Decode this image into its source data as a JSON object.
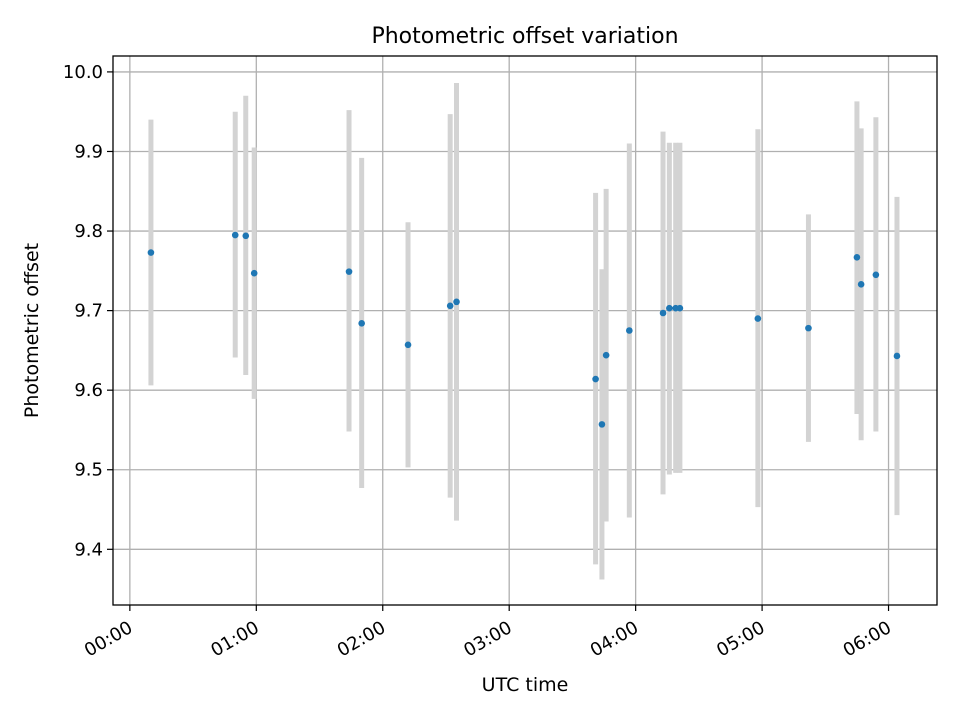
{
  "chart_data": {
    "type": "scatter",
    "title": "Photometric offset variation",
    "xlabel": "UTC time",
    "ylabel": "Photometric offset",
    "xlim": [
      "-00:08",
      "06:23"
    ],
    "ylim": [
      9.33,
      10.02
    ],
    "xticks": [
      "00:00",
      "01:00",
      "02:00",
      "03:00",
      "04:00",
      "05:00",
      "06:00"
    ],
    "yticks": [
      "9.4",
      "9.5",
      "9.6",
      "9.7",
      "9.8",
      "9.9",
      "10.0"
    ],
    "grid": true,
    "colors": {
      "marker": "#1f77b4",
      "errorbar": "#d3d3d3",
      "grid": "#b0b0b0"
    },
    "series": [
      {
        "points": [
          {
            "x": "00:10",
            "y": 9.773,
            "ylow": 9.606,
            "yhigh": 9.94
          },
          {
            "x": "00:50",
            "y": 9.795,
            "ylow": 9.641,
            "yhigh": 9.95
          },
          {
            "x": "00:55",
            "y": 9.794,
            "ylow": 9.619,
            "yhigh": 9.97
          },
          {
            "x": "00:59",
            "y": 9.747,
            "ylow": 9.589,
            "yhigh": 9.905
          },
          {
            "x": "01:44",
            "y": 9.749,
            "ylow": 9.548,
            "yhigh": 9.952
          },
          {
            "x": "01:50",
            "y": 9.684,
            "ylow": 9.477,
            "yhigh": 9.892
          },
          {
            "x": "02:12",
            "y": 9.657,
            "ylow": 9.503,
            "yhigh": 9.811
          },
          {
            "x": "02:32",
            "y": 9.706,
            "ylow": 9.465,
            "yhigh": 9.947
          },
          {
            "x": "02:35",
            "y": 9.711,
            "ylow": 9.436,
            "yhigh": 9.986
          },
          {
            "x": "03:41",
            "y": 9.614,
            "ylow": 9.381,
            "yhigh": 9.848
          },
          {
            "x": "03:44",
            "y": 9.557,
            "ylow": 9.362,
            "yhigh": 9.752
          },
          {
            "x": "03:46",
            "y": 9.644,
            "ylow": 9.435,
            "yhigh": 9.853
          },
          {
            "x": "03:57",
            "y": 9.675,
            "ylow": 9.44,
            "yhigh": 9.91
          },
          {
            "x": "04:13",
            "y": 9.697,
            "ylow": 9.469,
            "yhigh": 9.925
          },
          {
            "x": "04:16",
            "y": 9.703,
            "ylow": 9.494,
            "yhigh": 9.911
          },
          {
            "x": "04:19",
            "y": 9.703,
            "ylow": 9.496,
            "yhigh": 9.911
          },
          {
            "x": "04:21",
            "y": 9.703,
            "ylow": 9.496,
            "yhigh": 9.911
          },
          {
            "x": "04:58",
            "y": 9.69,
            "ylow": 9.453,
            "yhigh": 9.928
          },
          {
            "x": "05:22",
            "y": 9.678,
            "ylow": 9.535,
            "yhigh": 9.821
          },
          {
            "x": "05:45",
            "y": 9.767,
            "ylow": 9.57,
            "yhigh": 9.963
          },
          {
            "x": "05:47",
            "y": 9.733,
            "ylow": 9.537,
            "yhigh": 9.929
          },
          {
            "x": "05:54",
            "y": 9.745,
            "ylow": 9.548,
            "yhigh": 9.943
          },
          {
            "x": "06:04",
            "y": 9.643,
            "ylow": 9.443,
            "yhigh": 9.843
          }
        ]
      }
    ]
  }
}
